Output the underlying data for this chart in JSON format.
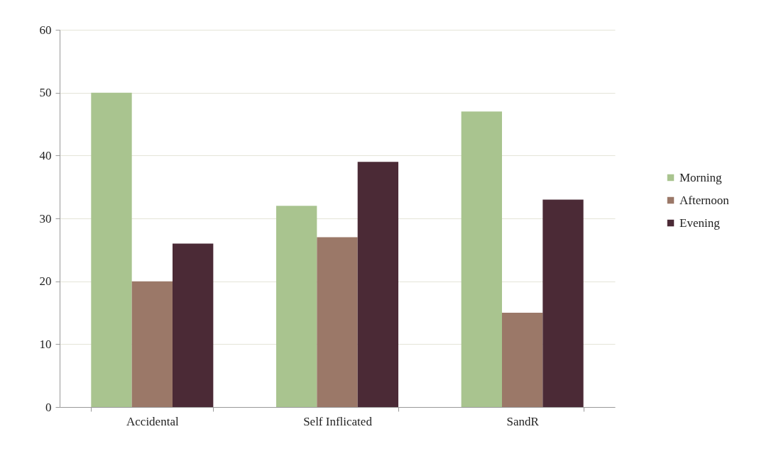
{
  "chart_data": {
    "type": "bar",
    "categories": [
      "Accidental",
      "Self Inflicated",
      "SandR"
    ],
    "series": [
      {
        "name": "Morning",
        "color": "#a9c48f",
        "values": [
          50,
          32,
          47
        ]
      },
      {
        "name": "Afternoon",
        "color": "#9b7868",
        "values": [
          20,
          27,
          15
        ]
      },
      {
        "name": "Evening",
        "color": "#4b2a36",
        "values": [
          26,
          39,
          33
        ]
      }
    ],
    "ylim": [
      0,
      60
    ],
    "yticks": [
      0,
      10,
      20,
      30,
      40,
      50,
      60
    ],
    "grid": "y",
    "legend": "right"
  }
}
